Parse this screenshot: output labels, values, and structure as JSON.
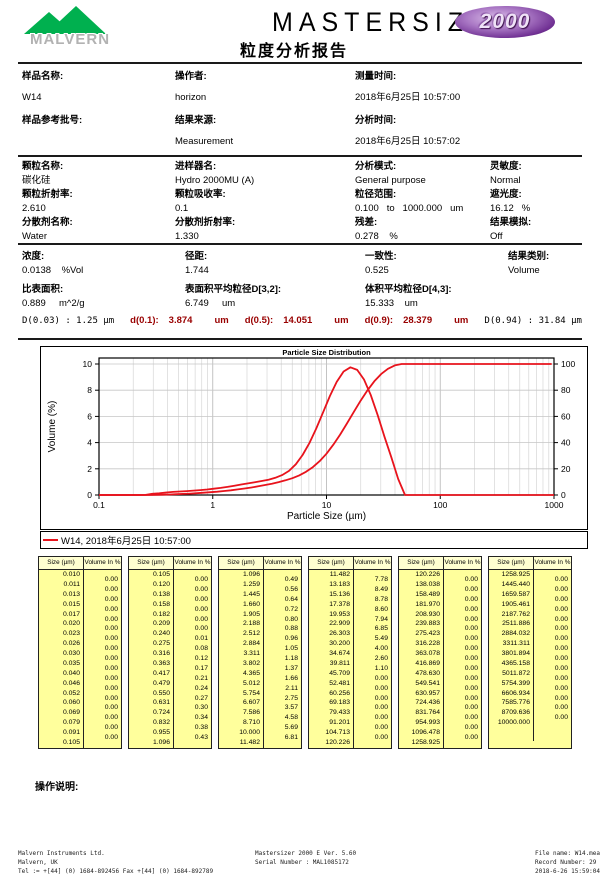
{
  "header": {
    "brand": "MALVERN",
    "product": "MASTERSIZER",
    "badge": "2000",
    "subtitle": "粒度分析报告"
  },
  "sample_info": [
    {
      "label": "样品名称:",
      "value": "W14"
    },
    {
      "label": "操作者:",
      "value": "horizon"
    },
    {
      "label": "测量时间:",
      "value": "2018年6月25日 10:57:00"
    },
    {
      "label": "样品参考批号:",
      "value": ""
    },
    {
      "label": "结果来源:",
      "value": "Measurement"
    },
    {
      "label": "分析时间:",
      "value": "2018年6月25日 10:57:02"
    }
  ],
  "params": [
    {
      "label": "颗粒名称:",
      "value": "碳化硅"
    },
    {
      "label": "进样器名:",
      "value": "Hydro 2000MU (A)"
    },
    {
      "label": "分析模式:",
      "value": "General purpose"
    },
    {
      "label": "灵敏度:",
      "value": "Normal"
    },
    {
      "label": "颗粒折射率:",
      "value": "2.610"
    },
    {
      "label": "颗粒吸收率:",
      "value": "0.1"
    },
    {
      "label": "粒径范围:",
      "value": "0.100   to   1000.000   um"
    },
    {
      "label": "遮光度:",
      "value": "16.12   %"
    },
    {
      "label": "分散剂名称:",
      "value": "Water"
    },
    {
      "label": "分散剂折射率:",
      "value": "1.330"
    },
    {
      "label": "残差:",
      "value": "0.278    %"
    },
    {
      "label": "结果模拟:",
      "value": "Off"
    }
  ],
  "results_row1": [
    {
      "label": "浓度:",
      "value": "0.0138    %Vol"
    },
    {
      "label": "径距:",
      "value": "1.744"
    },
    {
      "label": "一致性:",
      "value": "0.525"
    },
    {
      "label": "结果类别:",
      "value": "Volume"
    }
  ],
  "results_row2": [
    {
      "label": "比表面积:",
      "value": "0.889     m^2/g"
    },
    {
      "label": "表面积平均粒径D[3,2]:",
      "value": "6.749     um"
    },
    {
      "label": "体积平均粒径D[4,3]:",
      "value": "15.333    um"
    }
  ],
  "d_values": {
    "d003": "D(0.03) : 1.25 μm",
    "d01": {
      "label": "d(0.1):",
      "value": "3.874",
      "unit": "um"
    },
    "d05": {
      "label": "d(0.5):",
      "value": "14.051",
      "unit": "um"
    },
    "d09": {
      "label": "d(0.9):",
      "value": "28.379",
      "unit": "um"
    },
    "d094": "D(0.94) : 31.84 μm"
  },
  "accent_colors": {
    "curve_red": "#e8131c",
    "dvalue_red": "#990000",
    "table_yellow": "#ffff9c",
    "logo_green": "#00b04f",
    "badge_purple": "#703093"
  },
  "chart_data": {
    "type": "line",
    "title": "Particle Size Distribution",
    "xlabel": "Particle Size (µm)",
    "ylabel": "Volume (%)",
    "x_scale": "log",
    "xlim": [
      0.1,
      1000
    ],
    "ylim_left": [
      0,
      10
    ],
    "ylim_right": [
      0,
      100
    ],
    "x_ticks": [
      "0.1",
      "1",
      "10",
      "100",
      "1000"
    ],
    "left_ticks": [
      0,
      2,
      4,
      6,
      8,
      10
    ],
    "right_ticks": [
      0,
      20,
      40,
      60,
      80,
      100
    ],
    "grid": true,
    "legend": {
      "position": "bottom",
      "label": "W14, 2018年6月25日 10:57:00"
    },
    "series": [
      {
        "name": "volume-frequency",
        "color": "#e8131c",
        "peak_volume_percent": 8.78,
        "peak_size_um": 16.2
      },
      {
        "name": "cumulative-undersize",
        "color": "#e8131c",
        "reaches_100_percent_at_um": 45.709
      }
    ],
    "bins": {
      "edges_um": [
        "0.010",
        "0.011",
        "0.013",
        "0.015",
        "0.017",
        "0.020",
        "0.023",
        "0.026",
        "0.030",
        "0.035",
        "0.040",
        "0.046",
        "0.052",
        "0.060",
        "0.069",
        "0.079",
        "0.091",
        "0.105",
        "0.120",
        "0.138",
        "0.158",
        "0.182",
        "0.209",
        "0.240",
        "0.275",
        "0.316",
        "0.363",
        "0.417",
        "0.479",
        "0.550",
        "0.631",
        "0.724",
        "0.832",
        "0.955",
        "1.096",
        "1.259",
        "1.445",
        "1.660",
        "1.905",
        "2.188",
        "2.512",
        "2.884",
        "3.311",
        "3.802",
        "4.365",
        "5.012",
        "5.754",
        "6.607",
        "7.586",
        "8.710",
        "10.000",
        "11.482",
        "13.183",
        "15.136",
        "17.378",
        "19.953",
        "22.909",
        "26.303",
        "30.200",
        "34.674",
        "39.811",
        "45.709",
        "52.481",
        "60.256",
        "69.183",
        "79.433",
        "91.201",
        "104.713",
        "120.226",
        "138.038",
        "158.489",
        "181.970",
        "208.930",
        "239.883",
        "275.423",
        "316.228",
        "363.078",
        "416.869",
        "478.630",
        "549.541",
        "630.957",
        "724.436",
        "831.764",
        "954.993",
        "1096.478",
        "1258.925",
        "1445.440",
        "1659.587",
        "1905.461",
        "2187.762",
        "2511.886",
        "2884.032",
        "3311.311",
        "3801.894",
        "4365.158",
        "5011.872",
        "5754.399",
        "6606.934",
        "7585.776",
        "8709.636",
        "10000.000"
      ],
      "volume_in_percent": [
        "0.00",
        "0.00",
        "0.00",
        "0.00",
        "0.00",
        "0.00",
        "0.00",
        "0.00",
        "0.00",
        "0.00",
        "0.00",
        "0.00",
        "0.00",
        "0.00",
        "0.00",
        "0.00",
        "0.00",
        "0.00",
        "0.00",
        "0.00",
        "0.00",
        "0.00",
        "0.00",
        "0.01",
        "0.08",
        "0.12",
        "0.17",
        "0.21",
        "0.24",
        "0.27",
        "0.30",
        "0.34",
        "0.38",
        "0.43",
        "0.49",
        "0.56",
        "0.64",
        "0.72",
        "0.80",
        "0.88",
        "0.96",
        "1.05",
        "1.18",
        "1.37",
        "1.66",
        "2.11",
        "2.75",
        "3.57",
        "4.58",
        "5.69",
        "6.81",
        "7.78",
        "8.49",
        "8.78",
        "8.60",
        "7.94",
        "6.85",
        "5.49",
        "4.00",
        "2.60",
        "1.10",
        "0.00",
        "0.00",
        "0.00",
        "0.00",
        "0.00",
        "0.00",
        "0.00",
        "0.00",
        "0.00",
        "0.00",
        "0.00",
        "0.00",
        "0.00",
        "0.00",
        "0.00",
        "0.00",
        "0.00",
        "0.00",
        "0.00",
        "0.00",
        "0.00",
        "0.00",
        "0.00",
        "0.00",
        "0.00",
        "0.00",
        "0.00",
        "0.00",
        "0.00",
        "0.00",
        "0.00",
        "0.00",
        "0.00",
        "0.00",
        "0.00",
        "0.00",
        "0.00",
        "0.00",
        "0.00"
      ]
    }
  },
  "tables": {
    "headers": [
      "Size (µm)",
      "Volume In %"
    ],
    "columns": 6,
    "note": "cell data = chart_data.bins (size edges with volume % between consecutive sizes)"
  },
  "operation_notes_label": "操作说明:",
  "footer": {
    "left": [
      "Malvern Instruments Ltd.",
      "Malvern, UK",
      "Tel := +[44] (0) 1684-892456 Fax +[44] (0) 1684-892789"
    ],
    "center": [
      "Mastersizer 2000 E Ver. 5.60",
      "Serial Number : MAL1085172"
    ],
    "right": [
      "File name: W14.mea",
      "Record Number: 29",
      "2018-6-26 15:59:04"
    ]
  }
}
